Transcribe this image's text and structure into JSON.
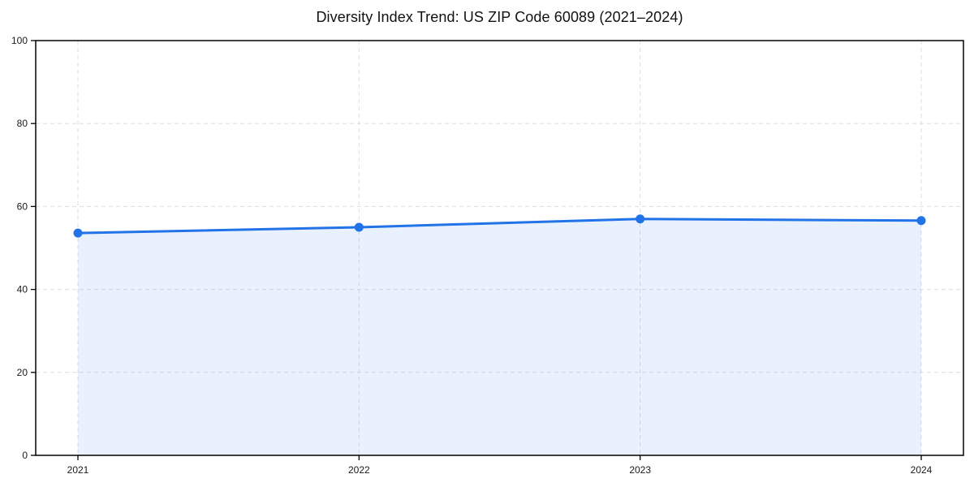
{
  "chart_data": {
    "type": "area",
    "title": "Diversity Index Trend: US ZIP Code 60089 (2021–2024)",
    "series_name": "Diversity Index",
    "categories": [
      "2021",
      "2022",
      "2023",
      "2024"
    ],
    "x": [
      2021,
      2022,
      2023,
      2024
    ],
    "values": [
      53.6,
      55.0,
      57.0,
      56.6
    ],
    "xlabel": "",
    "ylabel": "",
    "ylim": [
      0,
      100
    ],
    "yticks": [
      0,
      20,
      40,
      60,
      80,
      100
    ],
    "grid": "dashed",
    "legend": "none",
    "colors": {
      "line": "#2273e8",
      "marker": "#2273e8",
      "fill": "rgba(34, 115, 232, 0.10)",
      "gridline": "#dedede",
      "spine": "#000000",
      "tick_text": "#1a1a1a",
      "background": "#ffffff"
    }
  }
}
